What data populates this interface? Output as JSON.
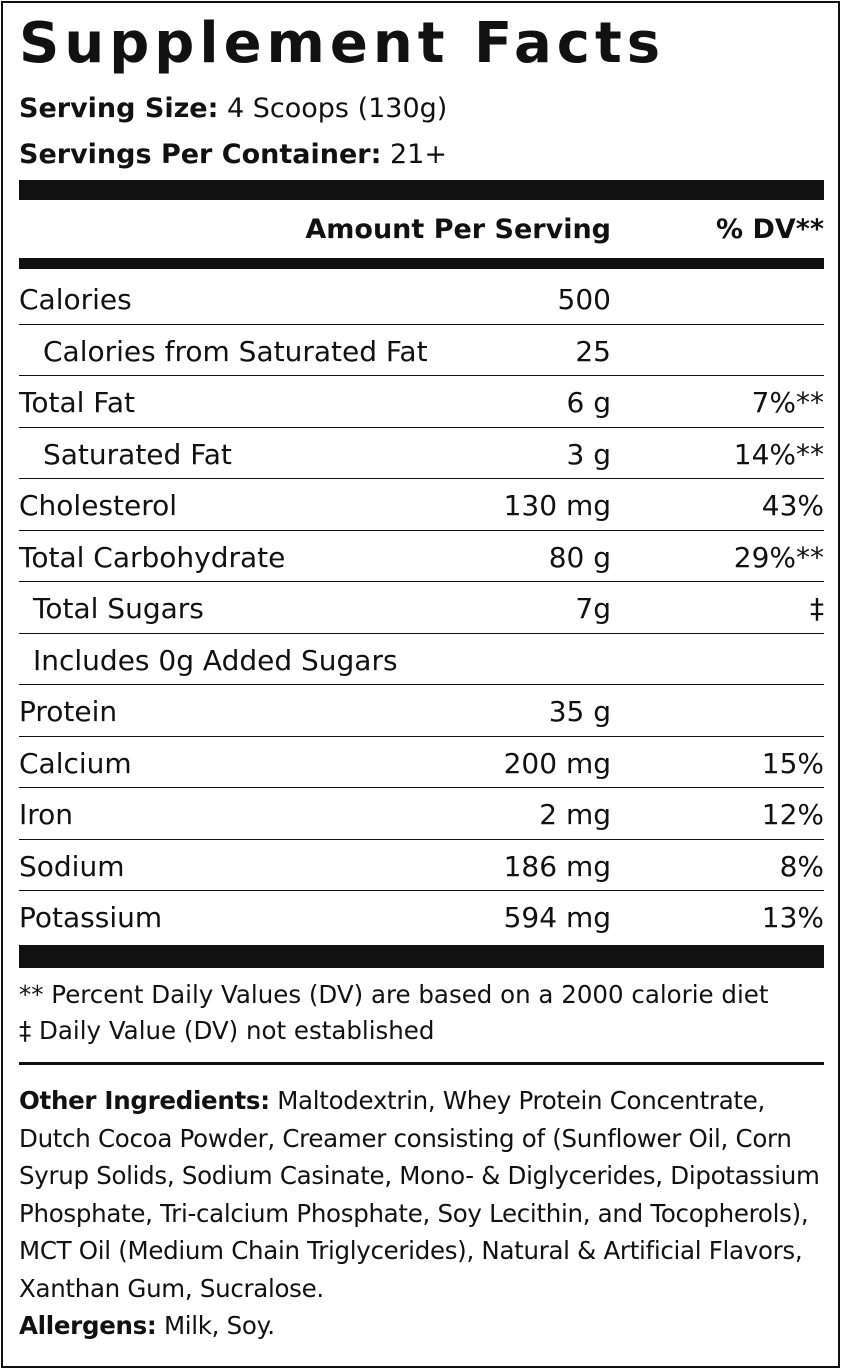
{
  "title": "Supplement Facts",
  "serving_size": {
    "label": "Serving Size:",
    "value": "4 Scoops (130g)"
  },
  "servings_per_container": {
    "label": "Servings Per Container:",
    "value": "21+"
  },
  "table": {
    "header": [
      "Amount Per Serving",
      "% DV**"
    ],
    "rows": [
      {
        "name": "Calories",
        "amount": "500"
      },
      {
        "name": "Calories from Saturated Fat",
        "amount": "25"
      },
      {
        "name": "Total Fat",
        "amount": "6 g",
        "dv": "7%**"
      },
      {
        "name": "Saturated Fat",
        "amount": "3 g",
        "dv": "14%**"
      },
      {
        "name": "Cholesterol",
        "amount": "130 mg",
        "dv": "43%"
      },
      {
        "name": "Total Carbohydrate",
        "amount": "80 g",
        "dv": "29%**"
      },
      {
        "name": "Total Sugars",
        "amount": "7g",
        "dv": "‡"
      },
      {
        "name": "Includes 0g Added Sugars"
      },
      {
        "name": "Protein",
        "amount": "35 g"
      },
      {
        "name": "Calcium",
        "amount": "200 mg",
        "dv": "15%"
      },
      {
        "name": "Iron",
        "amount": "2 mg",
        "dv": "12%"
      },
      {
        "name": "Sodium",
        "amount": "186 mg",
        "dv": "8%"
      },
      {
        "name": "Potassium",
        "amount": "594 mg",
        "dv": "13%"
      }
    ]
  },
  "footnotes": [
    "** Percent Daily Values (DV) are based on a 2000 calorie diet",
    "‡ Daily Value (DV) not established"
  ],
  "other_ingredients": {
    "label": "Other Ingredients:",
    "text": "Maltodextrin, Whey Protein Concentrate, Dutch Cocoa Powder, Creamer consisting of (Sunflower Oil, Corn Syrup Solids, Sodium Casinate, Mono- & Diglycerides, Dipotassium Phosphate, Tri-calcium Phosphate, Soy Lecithin, and Tocopherols), MCT Oil (Medium Chain Triglycerides), Natural & Artificial Flavors, Xanthan Gum, Sucralose."
  },
  "allergens": {
    "label": "Allergens:",
    "text": "Milk, Soy."
  }
}
